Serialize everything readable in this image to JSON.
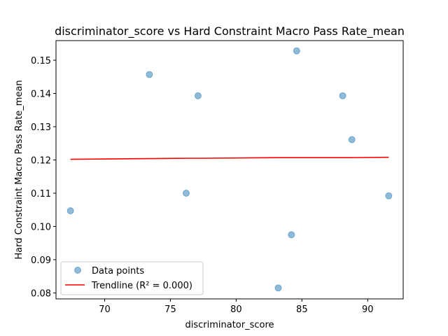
{
  "chart_data": {
    "type": "scatter",
    "title": "discriminator_score vs Hard Constraint Macro Pass Rate_mean",
    "xlabel": "discriminator_score",
    "ylabel": "Hard Constraint Macro Pass Rate_mean",
    "xlim": [
      66.3,
      92.7
    ],
    "ylim": [
      0.0782,
      0.1559
    ],
    "xticks": [
      70,
      75,
      80,
      85,
      90
    ],
    "xtick_labels": [
      "70",
      "75",
      "80",
      "85",
      "90"
    ],
    "yticks": [
      0.08,
      0.09,
      0.1,
      0.11,
      0.12,
      0.13,
      0.14,
      0.15
    ],
    "ytick_labels": [
      "0.08",
      "0.09",
      "0.10",
      "0.11",
      "0.12",
      "0.13",
      "0.14",
      "0.15"
    ],
    "grid": false,
    "legend_position": "lower-left",
    "series": [
      {
        "name": "Data points",
        "kind": "scatter",
        "color": "#1f77b4",
        "points": [
          {
            "x": 67.4,
            "y": 0.1047
          },
          {
            "x": 73.4,
            "y": 0.1457
          },
          {
            "x": 76.2,
            "y": 0.11
          },
          {
            "x": 77.1,
            "y": 0.1393
          },
          {
            "x": 83.2,
            "y": 0.0815
          },
          {
            "x": 84.2,
            "y": 0.0975
          },
          {
            "x": 84.6,
            "y": 0.1528
          },
          {
            "x": 88.1,
            "y": 0.1393
          },
          {
            "x": 88.8,
            "y": 0.1261
          },
          {
            "x": 91.6,
            "y": 0.1092
          }
        ]
      },
      {
        "name": "Trendline (R² = 0.000)",
        "kind": "line",
        "color": "#ff0000",
        "x": [
          67.4,
          73.4,
          76.2,
          77.1,
          83.2,
          84.2,
          84.6,
          88.1,
          88.8,
          91.6
        ],
        "y": [
          0.1202,
          0.1204,
          0.1205,
          0.1205,
          0.1207,
          0.1207,
          0.1207,
          0.1207,
          0.1207,
          0.1208
        ]
      }
    ]
  }
}
